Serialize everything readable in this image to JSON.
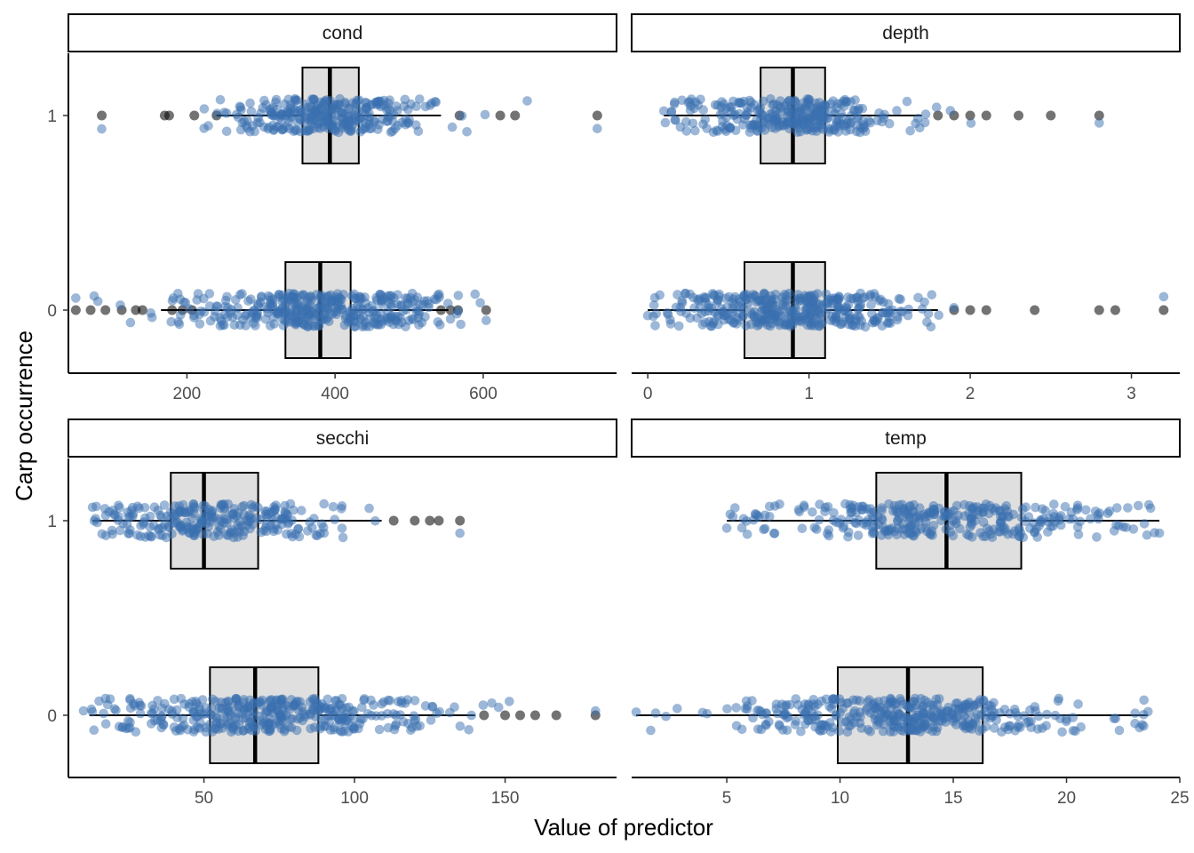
{
  "chart_data": {
    "type": "boxplot",
    "xlabel": "Value of predictor",
    "ylabel": "Carp occurrence",
    "point_color": "#3a70b0",
    "y_categories": [
      "0",
      "1"
    ],
    "panels": [
      {
        "name": "cond",
        "xlim": [
          40,
          780
        ],
        "xticks": [
          200,
          400,
          600
        ],
        "boxes": [
          {
            "y": "1",
            "whisker_low": 240,
            "q1": 356,
            "median": 393,
            "q3": 432,
            "whisker_high": 543,
            "outliers": [
              85,
              170,
              176,
              210,
              240,
              568,
              623,
              643,
              754
            ]
          },
          {
            "y": "0",
            "whisker_low": 165,
            "q1": 333,
            "median": 380,
            "q3": 421,
            "whisker_high": 553,
            "outliers": [
              50,
              70,
              90,
              112,
              131,
              140,
              180,
              194,
              207,
              543,
              556,
              566,
              604
            ]
          }
        ],
        "points": [
          {
            "y": "1",
            "range": [
              85,
              754
            ],
            "center": 393,
            "spread": 70,
            "count": 300
          },
          {
            "y": "0",
            "range": [
              50,
              604
            ],
            "center": 380,
            "spread": 90,
            "count": 380
          }
        ]
      },
      {
        "name": "depth",
        "xlim": [
          -0.1,
          3.3
        ],
        "xticks": [
          0,
          1,
          2,
          3
        ],
        "boxes": [
          {
            "y": "1",
            "whisker_low": 0.1,
            "q1": 0.7,
            "median": 0.9,
            "q3": 1.1,
            "whisker_high": 1.7,
            "outliers": [
              1.8,
              1.9,
              2.0,
              2.1,
              2.3,
              2.5,
              2.8
            ]
          },
          {
            "y": "0",
            "whisker_low": 0.0,
            "q1": 0.6,
            "median": 0.9,
            "q3": 1.1,
            "whisker_high": 1.8,
            "outliers": [
              1.9,
              2.0,
              2.1,
              2.4,
              2.8,
              2.9,
              3.2
            ]
          }
        ],
        "points": [
          {
            "y": "1",
            "range": [
              0.1,
              2.8
            ],
            "center": 0.9,
            "spread": 0.35,
            "count": 300
          },
          {
            "y": "0",
            "range": [
              0.0,
              3.2
            ],
            "center": 0.85,
            "spread": 0.4,
            "count": 380
          }
        ]
      },
      {
        "name": "secchi",
        "xlim": [
          5,
          187
        ],
        "xticks": [
          50,
          100,
          150
        ],
        "boxes": [
          {
            "y": "1",
            "whisker_low": 13,
            "q1": 39,
            "median": 50,
            "q3": 68,
            "whisker_high": 109,
            "outliers": [
              113,
              120,
              125,
              128,
              135
            ]
          },
          {
            "y": "0",
            "whisker_low": 12,
            "q1": 52,
            "median": 67,
            "q3": 88,
            "whisker_high": 140,
            "outliers": [
              143,
              150,
              155,
              160,
              167,
              180
            ]
          }
        ],
        "points": [
          {
            "y": "1",
            "range": [
              13,
              135
            ],
            "center": 52,
            "spread": 22,
            "count": 260
          },
          {
            "y": "0",
            "range": [
              10,
              180
            ],
            "center": 70,
            "spread": 30,
            "count": 380
          }
        ]
      },
      {
        "name": "temp",
        "xlim": [
          0.8,
          25.0
        ],
        "xticks": [
          5,
          10,
          15,
          20,
          25
        ],
        "boxes": [
          {
            "y": "1",
            "whisker_low": 5.0,
            "q1": 11.6,
            "median": 14.7,
            "q3": 18.0,
            "whisker_high": 24.1,
            "outliers": []
          },
          {
            "y": "0",
            "whisker_low": 1.0,
            "q1": 9.9,
            "median": 13.0,
            "q3": 16.3,
            "whisker_high": 23.6,
            "outliers": []
          }
        ],
        "points": [
          {
            "y": "1",
            "range": [
              5.0,
              24.1
            ],
            "center": 14.7,
            "spread": 4.5,
            "count": 320
          },
          {
            "y": "0",
            "range": [
              1.0,
              23.6
            ],
            "center": 13.0,
            "spread": 4.2,
            "count": 380
          }
        ]
      }
    ]
  }
}
